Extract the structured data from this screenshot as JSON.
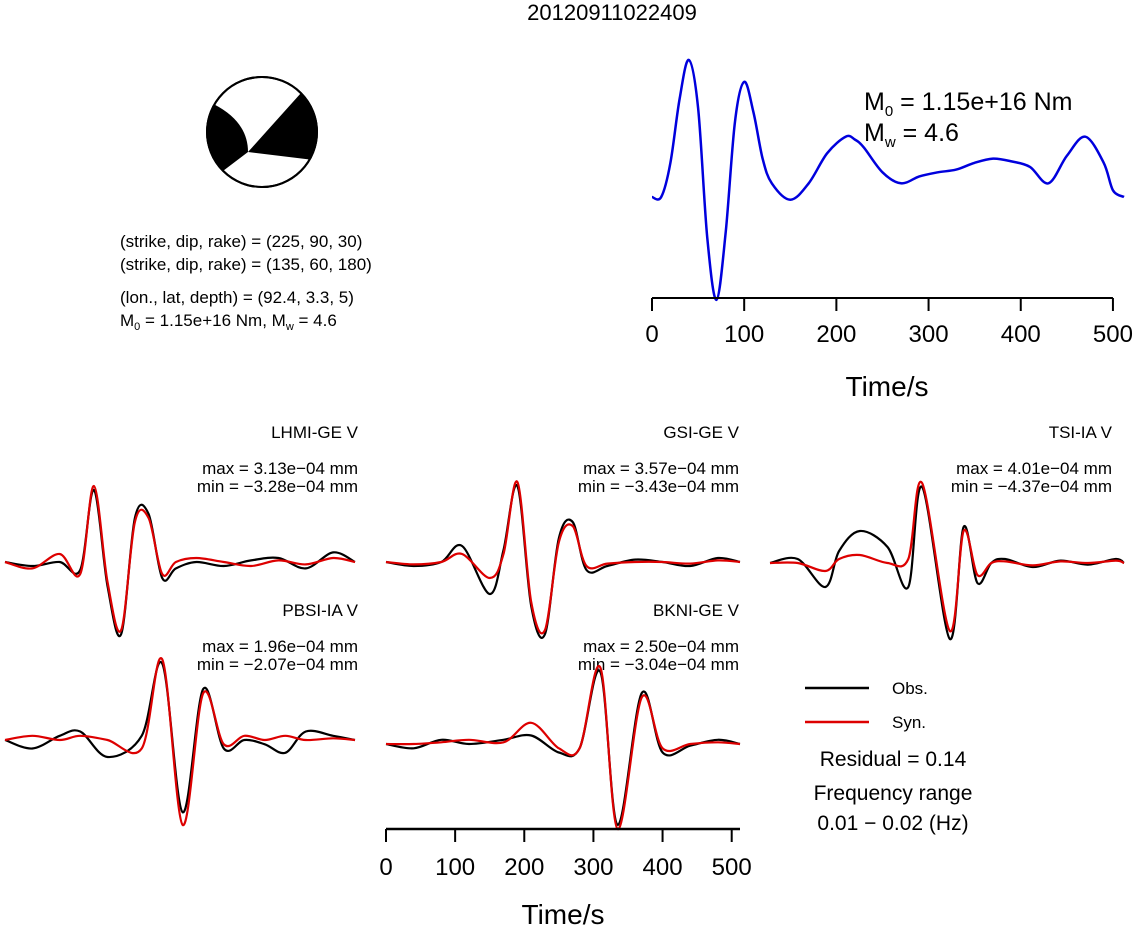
{
  "title": "20120911022409",
  "focal_mechanism": {
    "plane1": "(strike, dip, rake) = (225, 90, 30)",
    "plane2": "(strike, dip, rake) = (135, 60, 180)",
    "location": "(lon., lat, depth) = (92.4, 3.3, 5)",
    "moment_prefix": "M",
    "moment_sub": "0",
    "moment_mid": " = 1.15e+16 Nm, M",
    "moment_sub2": "w",
    "moment_suffix": " = 4.6"
  },
  "stf_panel": {
    "m0_label": "M",
    "m0_sub": "0",
    "m0_value": " = 1.15e+16 Nm",
    "mw_label": "M",
    "mw_sub": "w",
    "mw_value": " = 4.6",
    "xlabel": "Time/s"
  },
  "waveform_xlabel": "Time/s",
  "legend": {
    "obs": "Obs.",
    "syn": "Syn.",
    "residual": "Residual = 0.14",
    "freq_label": "Frequency range",
    "freq_value": "0.01 − 0.02 (Hz)"
  },
  "colors": {
    "stf": "#0000dd",
    "obs": "#000000",
    "syn": "#dd0000",
    "beachball_fill": "#000000"
  },
  "chart_data": [
    {
      "type": "line",
      "name": "source-time-function",
      "xlabel": "Time/s",
      "ylabel": "",
      "xlim": [
        0,
        512
      ],
      "xticks": [
        0,
        100,
        200,
        300,
        400,
        500
      ],
      "series": [
        {
          "x": [
            0,
            10,
            20,
            30,
            40,
            50,
            60,
            70,
            80,
            90,
            100,
            110,
            120,
            130,
            150,
            170,
            190,
            210,
            220,
            230,
            250,
            270,
            290,
            310,
            330,
            350,
            370,
            390,
            410,
            430,
            450,
            470,
            490,
            500,
            512
          ],
          "y": [
            0.0,
            0.0,
            0.25,
            0.72,
            1.0,
            0.65,
            -0.3,
            -0.75,
            -0.25,
            0.55,
            0.84,
            0.62,
            0.28,
            0.1,
            -0.02,
            0.1,
            0.32,
            0.44,
            0.42,
            0.36,
            0.18,
            0.1,
            0.15,
            0.18,
            0.2,
            0.25,
            0.28,
            0.26,
            0.22,
            0.1,
            0.3,
            0.44,
            0.25,
            0.05,
            0.0
          ]
        }
      ]
    },
    {
      "type": "line",
      "name": "waveform-fits",
      "xlabel": "Time/s",
      "xlim": [
        0,
        512
      ],
      "xticks": [
        0,
        100,
        200,
        300,
        400,
        500
      ],
      "series": [
        {
          "station": "LHMI-GE V",
          "max": "max = 3.13e−04 mm",
          "min": "min = −3.28e−04 mm",
          "obs": {
            "x": [
              0,
              40,
              80,
              110,
              130,
              150,
              170,
              190,
              210,
              230,
              250,
              280,
              320,
              360,
              400,
              440,
              480,
              512
            ],
            "y": [
              0.0,
              -0.05,
              0.0,
              -0.1,
              0.9,
              -0.3,
              -0.9,
              0.55,
              0.6,
              -0.2,
              -0.08,
              0.0,
              -0.05,
              0.02,
              0.05,
              -0.08,
              0.12,
              0.0
            ]
          },
          "syn": {
            "x": [
              0,
              40,
              80,
              110,
              130,
              150,
              170,
              190,
              210,
              230,
              250,
              280,
              320,
              360,
              400,
              440,
              480,
              512
            ],
            "y": [
              0.0,
              -0.08,
              0.1,
              -0.15,
              0.95,
              -0.25,
              -0.85,
              0.5,
              0.55,
              -0.15,
              0.0,
              0.05,
              0.0,
              -0.05,
              0.02,
              -0.03,
              0.05,
              0.0
            ]
          }
        },
        {
          "station": "GSI-GE V",
          "max": "max = 3.57e−04 mm",
          "min": "min = −3.43e−04 mm",
          "obs": {
            "x": [
              0,
              40,
              80,
              110,
              150,
              170,
              190,
              210,
              230,
              250,
              270,
              290,
              320,
              360,
              400,
              440,
              480,
              512
            ],
            "y": [
              0.0,
              -0.05,
              0.0,
              0.2,
              -0.4,
              0.15,
              0.95,
              -0.55,
              -0.9,
              0.3,
              0.5,
              -0.1,
              -0.05,
              0.03,
              0.0,
              -0.05,
              0.05,
              0.0
            ]
          },
          "syn": {
            "x": [
              0,
              40,
              80,
              110,
              150,
              170,
              190,
              210,
              230,
              250,
              270,
              290,
              320,
              360,
              400,
              440,
              480,
              512
            ],
            "y": [
              0.0,
              -0.03,
              0.0,
              0.1,
              -0.2,
              0.1,
              1.0,
              -0.5,
              -0.85,
              0.25,
              0.45,
              -0.05,
              -0.02,
              0.0,
              0.0,
              -0.02,
              0.02,
              0.0
            ]
          }
        },
        {
          "station": "TSI-IA V",
          "max": "max = 4.01e−04 mm",
          "min": "min = −4.37e−04 mm",
          "obs": {
            "x": [
              0,
              40,
              80,
              100,
              130,
              170,
              200,
              220,
              260,
              280,
              300,
              320,
              340,
              380,
              420,
              460,
              500,
              512
            ],
            "y": [
              0.0,
              0.05,
              -0.3,
              0.15,
              0.4,
              0.2,
              -0.3,
              0.95,
              -0.95,
              0.45,
              -0.25,
              0.0,
              0.05,
              -0.05,
              0.03,
              -0.02,
              0.05,
              0.0
            ]
          },
          "syn": {
            "x": [
              0,
              40,
              80,
              100,
              130,
              170,
              200,
              220,
              260,
              280,
              300,
              320,
              340,
              380,
              420,
              460,
              500,
              512
            ],
            "y": [
              0.0,
              0.0,
              -0.1,
              0.05,
              0.1,
              0.0,
              0.05,
              1.0,
              -0.85,
              0.4,
              -0.15,
              0.0,
              0.02,
              -0.03,
              0.02,
              0.0,
              0.03,
              0.0
            ]
          }
        },
        {
          "station": "PBSI-IA V",
          "max": "max = 1.96e−04 mm",
          "min": "min = −2.07e−04 mm",
          "obs": {
            "x": [
              0,
              40,
              80,
              110,
              150,
              200,
              230,
              260,
              290,
              320,
              350,
              380,
              410,
              440,
              480,
              512
            ],
            "y": [
              0.0,
              -0.1,
              0.05,
              0.1,
              -0.2,
              0.05,
              0.9,
              -0.85,
              0.6,
              -0.1,
              0.0,
              -0.05,
              -0.15,
              0.1,
              0.05,
              0.0
            ]
          },
          "syn": {
            "x": [
              0,
              40,
              80,
              110,
              150,
              200,
              230,
              260,
              290,
              320,
              350,
              380,
              410,
              440,
              480,
              512
            ],
            "y": [
              0.0,
              0.05,
              0.0,
              0.05,
              0.0,
              -0.1,
              0.95,
              -1.0,
              0.55,
              -0.05,
              0.05,
              0.0,
              0.05,
              0.0,
              0.02,
              0.0
            ]
          }
        },
        {
          "station": "BKNI-GE V",
          "max": "max = 2.50e−04 mm",
          "min": "min = −3.04e−04 mm",
          "obs": {
            "x": [
              0,
              40,
              80,
              120,
              170,
              210,
              250,
              280,
              310,
              335,
              370,
              400,
              440,
              480,
              512
            ],
            "y": [
              0.0,
              -0.05,
              0.05,
              0.0,
              0.05,
              0.1,
              -0.1,
              -0.05,
              0.85,
              -0.95,
              0.6,
              -0.1,
              -0.02,
              0.05,
              0.0
            ]
          },
          "syn": {
            "x": [
              0,
              40,
              80,
              120,
              170,
              210,
              250,
              280,
              310,
              335,
              370,
              400,
              440,
              480,
              512
            ],
            "y": [
              0.0,
              0.0,
              0.02,
              0.05,
              0.02,
              0.25,
              -0.05,
              -0.05,
              0.9,
              -1.0,
              0.55,
              -0.05,
              0.0,
              0.02,
              0.0
            ]
          }
        }
      ]
    }
  ]
}
